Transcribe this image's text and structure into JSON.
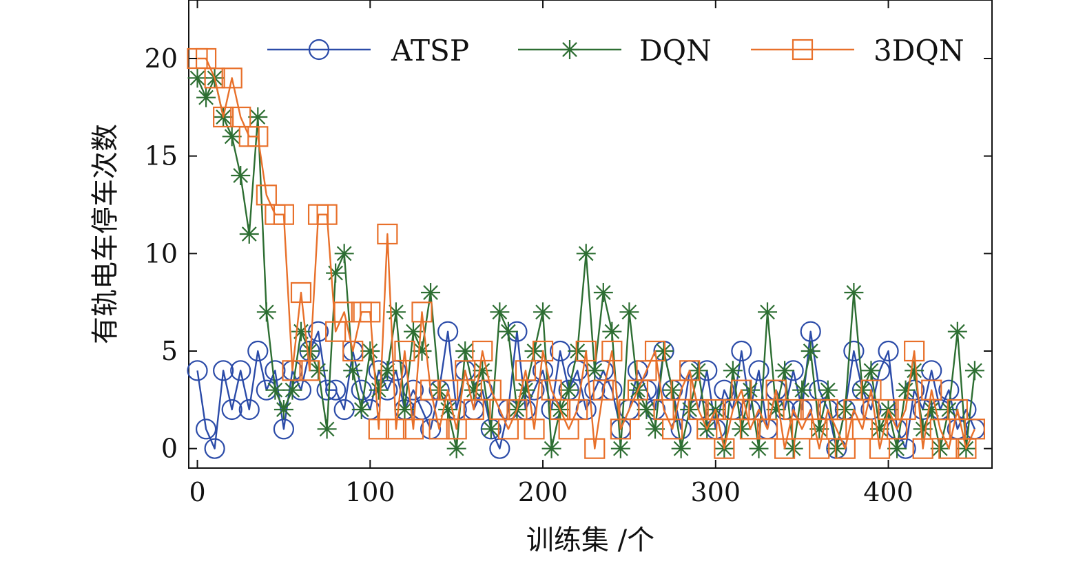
{
  "chart_data": {
    "type": "line",
    "title": "",
    "xlabel": "训练集 /个",
    "ylabel": "有轨电车停车次数",
    "xlim": [
      -5,
      460
    ],
    "ylim": [
      -1,
      23
    ],
    "xticks": [
      0,
      100,
      200,
      300,
      400
    ],
    "yticks": [
      0,
      5,
      10,
      15,
      20
    ],
    "grid": false,
    "legend": "top",
    "x": [
      0,
      5,
      10,
      15,
      20,
      25,
      30,
      35,
      40,
      45,
      50,
      55,
      60,
      65,
      70,
      75,
      80,
      85,
      90,
      95,
      100,
      105,
      110,
      115,
      120,
      125,
      130,
      135,
      140,
      145,
      150,
      155,
      160,
      165,
      170,
      175,
      180,
      185,
      190,
      195,
      200,
      205,
      210,
      215,
      220,
      225,
      230,
      235,
      240,
      245,
      250,
      255,
      260,
      265,
      270,
      275,
      280,
      285,
      290,
      295,
      300,
      305,
      310,
      315,
      320,
      325,
      330,
      335,
      340,
      345,
      350,
      355,
      360,
      365,
      370,
      375,
      380,
      385,
      390,
      395,
      400,
      405,
      410,
      415,
      420,
      425,
      430,
      435,
      440,
      445,
      450
    ],
    "series": [
      {
        "name": "ATSP",
        "color": "#2b4ba8",
        "marker": "circle",
        "values": [
          4,
          1,
          0,
          4,
          2,
          4,
          2,
          5,
          3,
          4,
          1,
          4,
          3,
          5,
          6,
          3,
          3,
          2,
          5,
          3,
          2,
          4,
          3,
          4,
          2,
          3,
          2,
          1,
          3,
          6,
          2,
          4,
          2,
          3,
          1,
          0,
          2,
          6,
          2,
          3,
          4,
          2,
          5,
          3,
          4,
          2,
          3,
          4,
          3,
          1,
          2,
          4,
          3,
          2,
          5,
          3,
          1,
          4,
          2,
          4,
          1,
          3,
          2,
          5,
          2,
          4,
          1,
          3,
          2,
          4,
          2,
          6,
          3,
          2,
          0,
          2,
          5,
          3,
          2,
          4,
          5,
          1,
          0,
          3,
          2,
          4,
          2,
          3,
          1,
          2,
          1
        ]
      },
      {
        "name": "DQN",
        "color": "#2d6e32",
        "marker": "asterisk",
        "values": [
          19,
          18,
          19,
          17,
          16,
          14,
          11,
          17,
          7,
          3,
          2,
          3,
          6,
          5,
          4,
          1,
          9,
          10,
          4,
          2,
          5,
          3,
          4,
          7,
          2,
          6,
          5,
          8,
          3,
          2,
          0,
          5,
          3,
          4,
          1,
          7,
          6,
          2,
          3,
          5,
          7,
          0,
          2,
          3,
          5,
          10,
          4,
          8,
          6,
          0,
          7,
          3,
          2,
          1,
          5,
          3,
          0,
          2,
          4,
          1,
          2,
          0,
          4,
          1,
          3,
          0,
          7,
          2,
          4,
          0,
          3,
          5,
          1,
          3,
          0,
          2,
          8,
          3,
          4,
          1,
          2,
          0,
          3,
          4,
          1,
          2,
          0,
          2,
          6,
          0,
          4
        ]
      },
      {
        "name": "3DQN",
        "color": "#e8702a",
        "marker": "square",
        "values": [
          20,
          20,
          19,
          17,
          19,
          17,
          16,
          16,
          13,
          12,
          12,
          4,
          8,
          4,
          12,
          12,
          6,
          7,
          5,
          7,
          7,
          1,
          11,
          1,
          5,
          1,
          7,
          3,
          1,
          3,
          1,
          4,
          2,
          5,
          3,
          2,
          1,
          2,
          4,
          1,
          5,
          3,
          2,
          1,
          2,
          5,
          0,
          3,
          5,
          1,
          2,
          3,
          4,
          5,
          2,
          1,
          3,
          4,
          2,
          1,
          2,
          0,
          2,
          3,
          1,
          2,
          1,
          3,
          0,
          2,
          1,
          2,
          0,
          2,
          1,
          0,
          2,
          1,
          3,
          0,
          2,
          1,
          2,
          5,
          0,
          3,
          1,
          0,
          2,
          0,
          1
        ]
      }
    ]
  }
}
